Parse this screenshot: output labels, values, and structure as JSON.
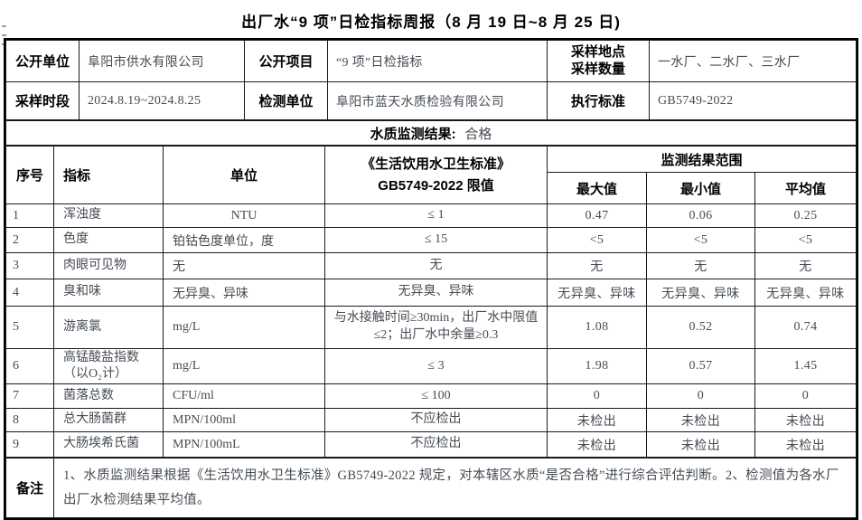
{
  "title": "出厂水“9 项”日检指标周报（8 月 19 日~8 月 25 日)",
  "colors": {
    "heading_text": "#000000",
    "value_text": "#454c54",
    "border": "#1a1a1a"
  },
  "info": {
    "open_unit_label": "公开单位",
    "open_unit_value": "阜阳市供水有限公司",
    "open_item_label": "公开项目",
    "open_item_value": "“9 项”日检指标",
    "sample_site_label_line1": "采样地点",
    "sample_site_label_line2": "采样数量",
    "sample_site_value": "一水厂、二水厂、三水厂",
    "sample_period_label": "采样时段",
    "sample_period_value": "2024.8.19~2024.8.25",
    "test_unit_label": "检测单位",
    "test_unit_value": "阜阳市蓝天水质检验有限公司",
    "standard_label": "执行标准",
    "standard_value": "GB5749-2022"
  },
  "result_banner": {
    "label": "水质监测结果:",
    "value": "合格"
  },
  "table": {
    "headers": {
      "no": "序号",
      "indicator": "指标",
      "unit": "单位",
      "limit_line1": "《生活饮用水卫生标准》",
      "limit_line2": "GB5749-2022 限值",
      "range_group": "监测结果范围",
      "max": "最大值",
      "min": "最小值",
      "avg": "平均值"
    },
    "rows": [
      {
        "no": "1",
        "indicator": "浑浊度",
        "unit": "NTU",
        "limit": "≤  1",
        "max": "0.47",
        "min": "0.06",
        "avg": "0.25"
      },
      {
        "no": "2",
        "indicator": "色度",
        "unit": "铂钴色度单位，度",
        "limit": "≤ 15",
        "max": "<5",
        "min": "<5",
        "avg": "<5"
      },
      {
        "no": "3",
        "indicator": "肉眼可见物",
        "unit": "无",
        "limit": "无",
        "max": "无",
        "min": "无",
        "avg": "无"
      },
      {
        "no": "4",
        "indicator": "臭和味",
        "unit": "无异臭、异味",
        "limit": "无异臭、异味",
        "max": "无异臭、异味",
        "min": "无异臭、异味",
        "avg": "无异臭、异味"
      },
      {
        "no": "5",
        "indicator": "游离氯",
        "unit": "mg/L",
        "limit": "与水接触时间≥30min，出厂水中限值≤2；出厂水中余量≥0.3",
        "max": "1.08",
        "min": "0.52",
        "avg": "0.74"
      },
      {
        "no": "6",
        "indicator": "高锰酸盐指数\n（以O₂计）",
        "unit": "mg/L",
        "limit": "≤ 3",
        "max": "1.98",
        "min": "0.57",
        "avg": "1.45"
      },
      {
        "no": "7",
        "indicator": "菌落总数",
        "unit": "CFU/ml",
        "limit": "≤ 100",
        "max": "0",
        "min": "0",
        "avg": "0"
      },
      {
        "no": "8",
        "indicator": "总大肠菌群",
        "unit": "MPN/100ml",
        "limit": "不应检出",
        "max": "未检出",
        "min": "未检出",
        "avg": "未检出"
      },
      {
        "no": "9",
        "indicator": "大肠埃希氏菌",
        "unit": "MPN/100mL",
        "limit": "不应检出",
        "max": "未检出",
        "min": "未检出",
        "avg": "未检出"
      }
    ]
  },
  "note": {
    "label": "备注",
    "text": "1、水质监测结果根据《生活饮用水卫生标准》GB5749-2022 规定，对本辖区水质“是否合格”进行综合评估判断。2、检测值为各水厂出厂水检测结果平均值。"
  }
}
